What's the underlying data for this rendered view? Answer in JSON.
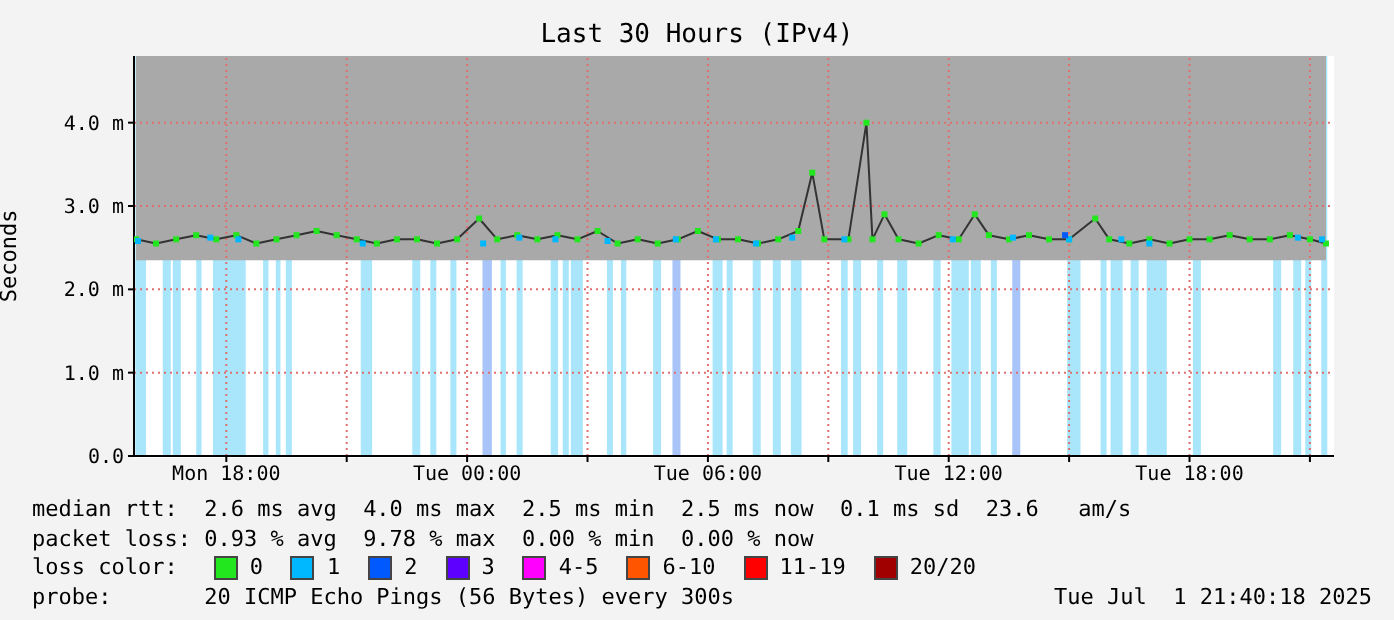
{
  "chart_data": {
    "type": "line",
    "title": "Last 30 Hours (IPv4)",
    "ylabel": "Seconds",
    "legend_title": "loss color:",
    "legend": "bottom",
    "grid": true,
    "marker": "square",
    "xlim": [
      "2025-06-30T15:42",
      "2025-07-01T21:36"
    ],
    "xticks": [
      {
        "value": "2025-06-30T18:00",
        "label": "Mon 18:00"
      },
      {
        "value": "2025-06-30T21:00",
        "label": null
      },
      {
        "value": "2025-07-01T00:00",
        "label": "Tue 00:00"
      },
      {
        "value": "2025-07-01T03:00",
        "label": null
      },
      {
        "value": "2025-07-01T06:00",
        "label": "Tue 06:00"
      },
      {
        "value": "2025-07-01T09:00",
        "label": null
      },
      {
        "value": "2025-07-01T12:00",
        "label": "Tue 12:00"
      },
      {
        "value": "2025-07-01T15:00",
        "label": null
      },
      {
        "value": "2025-07-01T18:00",
        "label": "Tue 18:00"
      },
      {
        "value": "2025-07-01T21:00",
        "label": null
      }
    ],
    "ylim": [
      0,
      4.8
    ],
    "yticks": [
      {
        "value": 0,
        "label": "0.0"
      },
      {
        "value": 1,
        "label": "1.0 m"
      },
      {
        "value": 2,
        "label": "2.0 m"
      },
      {
        "value": 3,
        "label": "3.0 m"
      },
      {
        "value": 4,
        "label": "4.0 m"
      }
    ],
    "series": [
      {
        "name": "0",
        "type": "line",
        "color": "#22e61e",
        "x": [
          "2025-06-30T15:45",
          "2025-06-30T16:15",
          "2025-06-30T16:45",
          "2025-06-30T17:15",
          "2025-06-30T17:45",
          "2025-06-30T18:15",
          "2025-06-30T18:45",
          "2025-06-30T19:15",
          "2025-06-30T19:45",
          "2025-06-30T20:15",
          "2025-06-30T20:45",
          "2025-06-30T21:15",
          "2025-06-30T21:45",
          "2025-06-30T22:15",
          "2025-06-30T22:45",
          "2025-06-30T23:15",
          "2025-06-30T23:45",
          "2025-07-01T00:18",
          "2025-07-01T00:45",
          "2025-07-01T01:15",
          "2025-07-01T01:45",
          "2025-07-01T02:15",
          "2025-07-01T02:45",
          "2025-07-01T03:15",
          "2025-07-01T03:45",
          "2025-07-01T04:15",
          "2025-07-01T04:45",
          "2025-07-01T05:15",
          "2025-07-01T05:45",
          "2025-07-01T06:15",
          "2025-07-01T06:45",
          "2025-07-01T07:15",
          "2025-07-01T07:45",
          "2025-07-01T08:15",
          "2025-07-01T08:36",
          "2025-07-01T08:54",
          "2025-07-01T09:30",
          "2025-07-01T09:57",
          "2025-07-01T10:06",
          "2025-07-01T10:24",
          "2025-07-01T10:45",
          "2025-07-01T11:15",
          "2025-07-01T11:45",
          "2025-07-01T12:15",
          "2025-07-01T12:39",
          "2025-07-01T13:00",
          "2025-07-01T13:30",
          "2025-07-01T14:00",
          "2025-07-01T14:30",
          "2025-07-01T15:00",
          "2025-07-01T15:39",
          "2025-07-01T16:00",
          "2025-07-01T16:30",
          "2025-07-01T17:00",
          "2025-07-01T17:30",
          "2025-07-01T18:00",
          "2025-07-01T18:30",
          "2025-07-01T19:00",
          "2025-07-01T19:30",
          "2025-07-01T20:00",
          "2025-07-01T20:30",
          "2025-07-01T21:00",
          "2025-07-01T21:24"
        ],
        "values": [
          2.6,
          2.55,
          2.6,
          2.65,
          2.6,
          2.65,
          2.55,
          2.6,
          2.65,
          2.7,
          2.65,
          2.6,
          2.55,
          2.6,
          2.6,
          2.55,
          2.6,
          2.85,
          2.6,
          2.65,
          2.6,
          2.65,
          2.6,
          2.7,
          2.55,
          2.6,
          2.55,
          2.6,
          2.7,
          2.6,
          2.6,
          2.55,
          2.6,
          2.7,
          3.4,
          2.6,
          2.6,
          4.0,
          2.6,
          2.9,
          2.6,
          2.55,
          2.65,
          2.6,
          2.9,
          2.65,
          2.6,
          2.65,
          2.6,
          2.6,
          2.85,
          2.6,
          2.55,
          2.6,
          2.55,
          2.6,
          2.6,
          2.65,
          2.6,
          2.6,
          2.65,
          2.6,
          2.55
        ],
        "lower": [
          2.35,
          2.35,
          2.35,
          2.35,
          2.35,
          2.35,
          2.35,
          2.35,
          2.35,
          2.35,
          2.35,
          2.35,
          2.35,
          2.35,
          2.35,
          2.35,
          2.35,
          2.35,
          2.35,
          2.35,
          2.35,
          2.35,
          2.35,
          2.35,
          2.35,
          2.35,
          2.35,
          2.35,
          2.35,
          2.35,
          2.35,
          2.35,
          2.35,
          2.35,
          2.35,
          2.35,
          2.35,
          2.35,
          2.35,
          2.35,
          2.35,
          2.35,
          2.35,
          2.35,
          2.35,
          2.35,
          2.35,
          2.35,
          2.35,
          2.35,
          2.35,
          2.35,
          2.35,
          2.35,
          2.35,
          2.35,
          2.35,
          2.35,
          2.35,
          2.35,
          2.35,
          2.35,
          2.35
        ],
        "upper": [
          4.8,
          4.8,
          4.8,
          4.8,
          4.8,
          4.8,
          4.8,
          4.8,
          4.8,
          4.8,
          4.8,
          4.8,
          4.8,
          4.8,
          4.8,
          4.8,
          4.8,
          4.8,
          4.8,
          4.8,
          4.8,
          4.8,
          4.8,
          4.8,
          4.8,
          4.8,
          4.8,
          4.8,
          4.8,
          4.8,
          4.8,
          4.8,
          4.8,
          4.8,
          4.8,
          4.8,
          4.8,
          4.8,
          4.8,
          4.8,
          4.8,
          4.8,
          4.8,
          4.8,
          4.8,
          4.8,
          4.8,
          4.8,
          4.8,
          4.8,
          4.8,
          4.8,
          4.8,
          4.8,
          4.8,
          4.8,
          4.8,
          4.8,
          4.8,
          4.8,
          4.8,
          4.8,
          4.8
        ]
      },
      {
        "name": "1",
        "type": "scatter",
        "color": "#00b8ff",
        "x": [
          "2025-06-30T15:48",
          "2025-06-30T17:36",
          "2025-06-30T18:18",
          "2025-06-30T21:24",
          "2025-07-01T00:24",
          "2025-07-01T01:18",
          "2025-07-01T02:12",
          "2025-07-01T03:30",
          "2025-07-01T05:12",
          "2025-07-01T06:12",
          "2025-07-01T07:12",
          "2025-07-01T08:06",
          "2025-07-01T09:24",
          "2025-07-01T12:06",
          "2025-07-01T13:36",
          "2025-07-01T15:00",
          "2025-07-01T16:18",
          "2025-07-01T17:00",
          "2025-07-01T20:42",
          "2025-07-01T21:18"
        ],
        "values": [
          2.58,
          2.62,
          2.6,
          2.55,
          2.55,
          2.62,
          2.6,
          2.58,
          2.6,
          2.6,
          2.55,
          2.62,
          2.6,
          2.6,
          2.62,
          2.6,
          2.6,
          2.55,
          2.62,
          2.6
        ]
      },
      {
        "name": "2",
        "type": "scatter",
        "color": "#0059ff",
        "x": [
          "2025-07-01T14:54"
        ],
        "values": [
          2.65
        ]
      },
      {
        "name": "3",
        "type": "scatter",
        "color": "#5e00ff"
      },
      {
        "name": "4-5",
        "type": "scatter",
        "color": "#ff00ff"
      },
      {
        "name": "6-10",
        "type": "scatter",
        "color": "#ff5500"
      },
      {
        "name": "11-19",
        "type": "scatter",
        "color": "#ff0000"
      },
      {
        "name": "20/20",
        "type": "scatter",
        "color": "#a10000"
      }
    ],
    "bands": [
      {
        "axis": "x",
        "from": "2025-06-30T15:44",
        "to": "2025-06-30T16:00",
        "label": null,
        "color": "#aae6fb"
      },
      {
        "axis": "x",
        "from": "2025-06-30T16:25",
        "to": "2025-06-30T16:37",
        "label": null,
        "color": "#aae6fb"
      },
      {
        "axis": "x",
        "from": "2025-06-30T16:40",
        "to": "2025-06-30T16:52",
        "label": null,
        "color": "#aae6fb"
      },
      {
        "axis": "x",
        "from": "2025-06-30T17:15",
        "to": "2025-06-30T17:23",
        "label": null,
        "color": "#aae6fb"
      },
      {
        "axis": "x",
        "from": "2025-06-30T17:40",
        "to": "2025-06-30T18:29",
        "label": null,
        "color": "#aae6fb"
      },
      {
        "axis": "x",
        "from": "2025-06-30T18:55",
        "to": "2025-06-30T19:03",
        "label": null,
        "color": "#aae6fb"
      },
      {
        "axis": "x",
        "from": "2025-06-30T19:14",
        "to": "2025-06-30T19:21",
        "label": null,
        "color": "#aae6fb"
      },
      {
        "axis": "x",
        "from": "2025-06-30T19:29",
        "to": "2025-06-30T19:38",
        "label": null,
        "color": "#aae6fb"
      },
      {
        "axis": "x",
        "from": "2025-06-30T21:21",
        "to": "2025-06-30T21:38",
        "label": null,
        "color": "#aae6fb"
      },
      {
        "axis": "x",
        "from": "2025-06-30T22:38",
        "to": "2025-06-30T22:50",
        "label": null,
        "color": "#aae6fb"
      },
      {
        "axis": "x",
        "from": "2025-06-30T23:05",
        "to": "2025-06-30T23:14",
        "label": null,
        "color": "#aae6fb"
      },
      {
        "axis": "x",
        "from": "2025-06-30T23:35",
        "to": "2025-06-30T23:44",
        "label": null,
        "color": "#aae6fb"
      },
      {
        "axis": "x",
        "from": "2025-07-01T00:23",
        "to": "2025-07-01T00:37",
        "label": null,
        "color": "#a8c4f8"
      },
      {
        "axis": "x",
        "from": "2025-07-01T00:50",
        "to": "2025-07-01T00:58",
        "label": null,
        "color": "#aae6fb"
      },
      {
        "axis": "x",
        "from": "2025-07-01T01:14",
        "to": "2025-07-01T01:23",
        "label": null,
        "color": "#aae6fb"
      },
      {
        "axis": "x",
        "from": "2025-07-01T02:05",
        "to": "2025-07-01T02:16",
        "label": null,
        "color": "#aae6fb"
      },
      {
        "axis": "x",
        "from": "2025-07-01T02:23",
        "to": "2025-07-01T02:32",
        "label": null,
        "color": "#aae6fb"
      },
      {
        "axis": "x",
        "from": "2025-07-01T02:35",
        "to": "2025-07-01T02:53",
        "label": null,
        "color": "#aae6fb"
      },
      {
        "axis": "x",
        "from": "2025-07-01T03:29",
        "to": "2025-07-01T03:38",
        "label": null,
        "color": "#aae6fb"
      },
      {
        "axis": "x",
        "from": "2025-07-01T03:50",
        "to": "2025-07-01T03:58",
        "label": null,
        "color": "#aae6fb"
      },
      {
        "axis": "x",
        "from": "2025-07-01T04:38",
        "to": "2025-07-01T04:50",
        "label": null,
        "color": "#aae6fb"
      },
      {
        "axis": "x",
        "from": "2025-07-01T05:07",
        "to": "2025-07-01T05:19",
        "label": null,
        "color": "#a8c4f8"
      },
      {
        "axis": "x",
        "from": "2025-07-01T06:07",
        "to": "2025-07-01T06:22",
        "label": null,
        "color": "#aae6fb"
      },
      {
        "axis": "x",
        "from": "2025-07-01T06:28",
        "to": "2025-07-01T06:37",
        "label": null,
        "color": "#aae6fb"
      },
      {
        "axis": "x",
        "from": "2025-07-01T07:07",
        "to": "2025-07-01T07:19",
        "label": null,
        "color": "#aae6fb"
      },
      {
        "axis": "x",
        "from": "2025-07-01T07:37",
        "to": "2025-07-01T07:49",
        "label": null,
        "color": "#aae6fb"
      },
      {
        "axis": "x",
        "from": "2025-07-01T08:04",
        "to": "2025-07-01T08:20",
        "label": null,
        "color": "#aae6fb"
      },
      {
        "axis": "x",
        "from": "2025-07-01T09:19",
        "to": "2025-07-01T09:29",
        "label": null,
        "color": "#aae6fb"
      },
      {
        "axis": "x",
        "from": "2025-07-01T09:37",
        "to": "2025-07-01T09:49",
        "label": null,
        "color": "#aae6fb"
      },
      {
        "axis": "x",
        "from": "2025-07-01T10:13",
        "to": "2025-07-01T10:22",
        "label": null,
        "color": "#aae6fb"
      },
      {
        "axis": "x",
        "from": "2025-07-01T10:43",
        "to": "2025-07-01T10:58",
        "label": null,
        "color": "#aae6fb"
      },
      {
        "axis": "x",
        "from": "2025-07-01T11:37",
        "to": "2025-07-01T11:48",
        "label": null,
        "color": "#aae6fb"
      },
      {
        "axis": "x",
        "from": "2025-07-01T12:04",
        "to": "2025-07-01T12:30",
        "label": null,
        "color": "#aae6fb"
      },
      {
        "axis": "x",
        "from": "2025-07-01T12:33",
        "to": "2025-07-01T12:48",
        "label": null,
        "color": "#aae6fb"
      },
      {
        "axis": "x",
        "from": "2025-07-01T13:03",
        "to": "2025-07-01T13:12",
        "label": null,
        "color": "#aae6fb"
      },
      {
        "axis": "x",
        "from": "2025-07-01T13:35",
        "to": "2025-07-01T13:47",
        "label": null,
        "color": "#a8c4f8"
      },
      {
        "axis": "x",
        "from": "2025-07-01T14:57",
        "to": "2025-07-01T15:17",
        "label": null,
        "color": "#aae6fb"
      },
      {
        "axis": "x",
        "from": "2025-07-01T15:47",
        "to": "2025-07-01T15:56",
        "label": null,
        "color": "#aae6fb"
      },
      {
        "axis": "x",
        "from": "2025-07-01T16:02",
        "to": "2025-07-01T16:20",
        "label": null,
        "color": "#aae6fb"
      },
      {
        "axis": "x",
        "from": "2025-07-01T16:32",
        "to": "2025-07-01T16:44",
        "label": null,
        "color": "#aae6fb"
      },
      {
        "axis": "x",
        "from": "2025-07-01T16:56",
        "to": "2025-07-01T17:26",
        "label": null,
        "color": "#aae6fb"
      },
      {
        "axis": "x",
        "from": "2025-07-01T18:05",
        "to": "2025-07-01T18:17",
        "label": null,
        "color": "#aae6fb"
      },
      {
        "axis": "x",
        "from": "2025-07-01T20:05",
        "to": "2025-07-01T20:17",
        "label": null,
        "color": "#aae6fb"
      },
      {
        "axis": "x",
        "from": "2025-07-01T20:35",
        "to": "2025-07-01T20:47",
        "label": null,
        "color": "#aae6fb"
      },
      {
        "axis": "x",
        "from": "2025-07-01T20:53",
        "to": "2025-07-01T21:02",
        "label": null,
        "color": "#aae6fb"
      },
      {
        "axis": "x",
        "from": "2025-07-01T21:17",
        "to": "2025-07-01T21:26",
        "label": null,
        "color": "#aae6fb"
      }
    ],
    "annotations": [
      "median rtt:  2.6 ms avg  4.0 ms max  2.5 ms min  2.5 ms now  0.1 ms sd  23.6   am/s",
      "packet loss: 0.93 % avg  9.78 % max  0.00 % min  0.00 % now",
      "probe:       20 ICMP Echo Pings (56 Bytes) every 300s",
      "Tue Jul  1 21:40:18 2025"
    ]
  }
}
